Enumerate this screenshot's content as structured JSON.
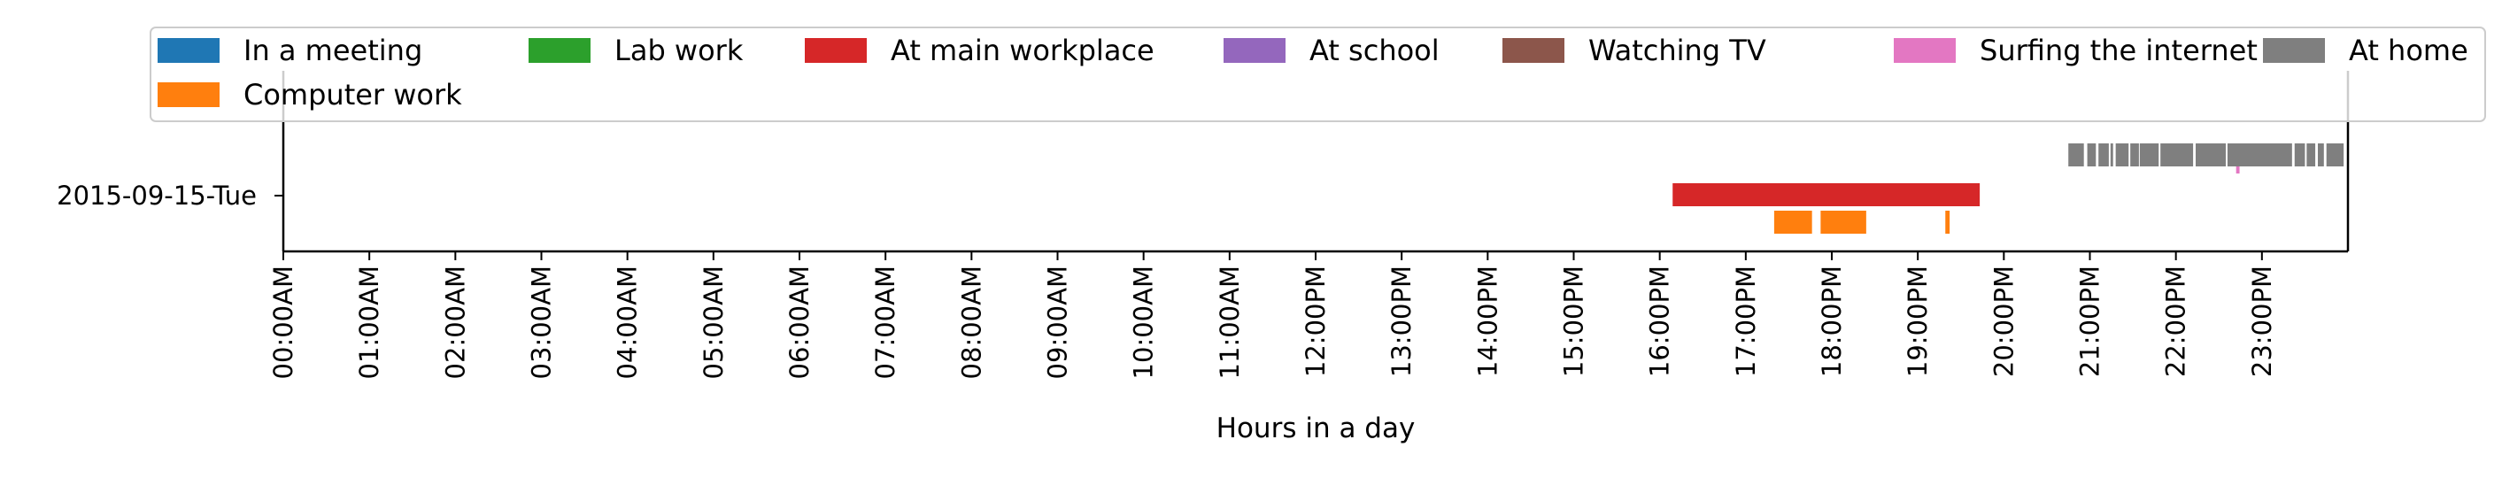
{
  "chart_data": {
    "type": "timeline",
    "title": "",
    "xlabel": "Hours in a day",
    "ylabel": "",
    "xlim": [
      0,
      24
    ],
    "x_ticks": [
      "00:00AM",
      "01:00AM",
      "02:00AM",
      "03:00AM",
      "04:00AM",
      "05:00AM",
      "06:00AM",
      "07:00AM",
      "08:00AM",
      "09:00AM",
      "10:00AM",
      "11:00AM",
      "12:00PM",
      "13:00PM",
      "14:00PM",
      "15:00PM",
      "16:00PM",
      "17:00PM",
      "18:00PM",
      "19:00PM",
      "20:00PM",
      "21:00PM",
      "22:00PM",
      "23:00PM"
    ],
    "rows": [
      "2015-09-15-Tue"
    ],
    "legend_position": "top",
    "series": [
      {
        "name": "In a meeting",
        "color": "#1f77b4",
        "intervals": []
      },
      {
        "name": "Computer work",
        "color": "#ff7f0e",
        "intervals": [
          [
            17.33,
            17.77
          ],
          [
            17.87,
            18.4
          ],
          [
            19.32,
            19.37
          ]
        ]
      },
      {
        "name": "Lab work",
        "color": "#2ca02c",
        "intervals": []
      },
      {
        "name": "At main workplace",
        "color": "#d62728",
        "intervals": [
          [
            16.15,
            19.72
          ]
        ]
      },
      {
        "name": "At school",
        "color": "#9467bd",
        "intervals": []
      },
      {
        "name": "Watching TV",
        "color": "#8c564b",
        "intervals": []
      },
      {
        "name": "Surfing the internet",
        "color": "#e377c2",
        "intervals": [
          [
            22.7,
            22.74
          ]
        ]
      },
      {
        "name": "At home",
        "color": "#7f7f7f",
        "intervals": [
          [
            20.75,
            20.93
          ],
          [
            20.97,
            21.07
          ],
          [
            21.1,
            21.22
          ],
          [
            21.24,
            21.27
          ],
          [
            21.3,
            21.45
          ],
          [
            21.47,
            21.57
          ],
          [
            21.58,
            21.8
          ],
          [
            21.82,
            22.2
          ],
          [
            22.23,
            22.58
          ],
          [
            22.6,
            23.35
          ],
          [
            23.38,
            23.5
          ],
          [
            23.52,
            23.62
          ],
          [
            23.65,
            23.72
          ],
          [
            23.75,
            23.95
          ]
        ]
      }
    ]
  }
}
